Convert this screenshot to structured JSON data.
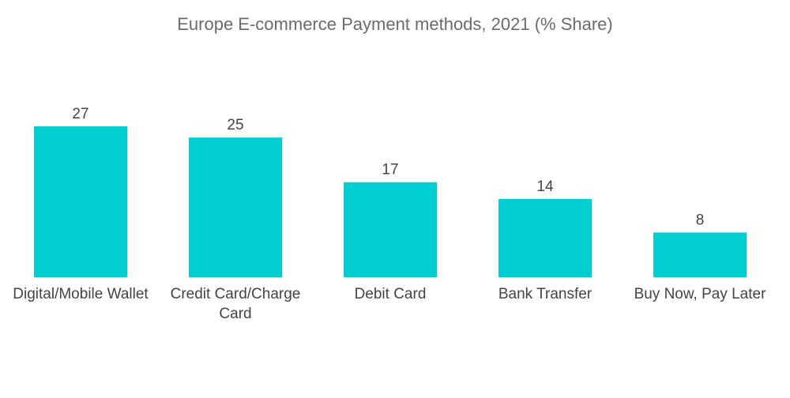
{
  "chart_data": {
    "type": "bar",
    "title": "Europe E-commerce Payment methods, 2021 (% Share)",
    "categories": [
      [
        "Digital/Mobile Wallet"
      ],
      [
        "Credit Card/Charge",
        "Card"
      ],
      [
        "Debit Card"
      ],
      [
        "Bank Transfer"
      ],
      [
        "Buy Now, Pay Later"
      ]
    ],
    "values": [
      27,
      25,
      17,
      14,
      8
    ],
    "xlabel": "",
    "ylabel": "",
    "ylim": [
      0,
      27
    ],
    "grid": false,
    "legend": "none",
    "bar_color": "#00CED1"
  }
}
